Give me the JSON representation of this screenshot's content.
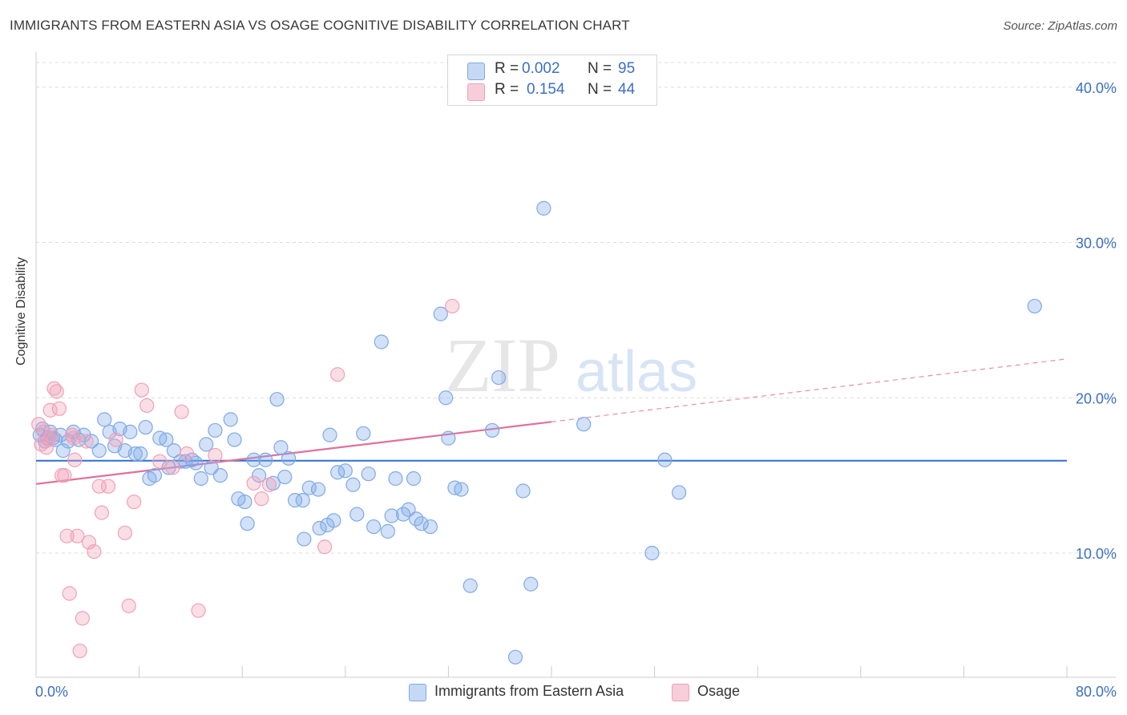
{
  "title": "IMMIGRANTS FROM EASTERN ASIA VS OSAGE COGNITIVE DISABILITY CORRELATION CHART",
  "source": "Source: ZipAtlas.com",
  "watermark": {
    "zip": "ZIP",
    "atlas": "atlas"
  },
  "stats_legend": [
    {
      "r_label": "R =",
      "r_value": "0.002",
      "n_label": "N =",
      "n_value": "95",
      "color": "#7ea9e8"
    },
    {
      "r_label": "R =",
      "r_value": "0.154",
      "n_label": "N =",
      "n_value": "44",
      "color": "#f0a0b8"
    }
  ],
  "bottom_legend": [
    {
      "label": "Immigrants from Eastern Asia",
      "color": "#7ea9e8"
    },
    {
      "label": "Osage",
      "color": "#f0a0b8"
    }
  ],
  "chart_data": {
    "type": "scatter",
    "title": "IMMIGRANTS FROM EASTERN ASIA VS OSAGE COGNITIVE DISABILITY CORRELATION CHART",
    "xlabel": "",
    "ylabel": "Cognitive Disability",
    "xlim": [
      0,
      80
    ],
    "ylim": [
      2,
      42
    ],
    "x_tick_labels": [
      "0.0%",
      "80.0%"
    ],
    "y_ticks": [
      10,
      20,
      30,
      40
    ],
    "y_tick_labels": [
      "10.0%",
      "20.0%",
      "30.0%",
      "40.0%"
    ],
    "grid": true,
    "legend_placement": "bottom",
    "series": [
      {
        "name": "Immigrants from Eastern Asia",
        "color": "#7ea9e8",
        "trend": {
          "x_start": 0,
          "y_start": 15.95,
          "x_end": 80,
          "y_end": 15.95,
          "color": "#2f6fd0"
        },
        "points": [
          [
            0.3,
            17.6
          ],
          [
            0.5,
            18.0
          ],
          [
            0.7,
            17.2
          ],
          [
            0.9,
            17.4
          ],
          [
            1.1,
            17.8
          ],
          [
            1.3,
            17.4
          ],
          [
            1.5,
            17.3
          ],
          [
            1.9,
            17.6
          ],
          [
            2.1,
            16.6
          ],
          [
            2.5,
            17.2
          ],
          [
            2.9,
            17.8
          ],
          [
            3.3,
            17.3
          ],
          [
            3.7,
            17.6
          ],
          [
            4.3,
            17.2
          ],
          [
            4.9,
            16.6
          ],
          [
            5.3,
            18.6
          ],
          [
            5.7,
            17.8
          ],
          [
            6.1,
            16.9
          ],
          [
            6.5,
            18.0
          ],
          [
            6.9,
            16.6
          ],
          [
            7.3,
            17.8
          ],
          [
            7.7,
            16.4
          ],
          [
            8.1,
            16.4
          ],
          [
            8.5,
            18.1
          ],
          [
            8.8,
            14.8
          ],
          [
            9.2,
            15.0
          ],
          [
            9.6,
            17.4
          ],
          [
            10.1,
            17.3
          ],
          [
            10.3,
            15.5
          ],
          [
            10.7,
            16.6
          ],
          [
            11.2,
            15.9
          ],
          [
            11.6,
            15.9
          ],
          [
            12.1,
            16.0
          ],
          [
            12.4,
            15.8
          ],
          [
            12.8,
            14.8
          ],
          [
            13.2,
            17.0
          ],
          [
            13.6,
            15.5
          ],
          [
            13.9,
            17.9
          ],
          [
            14.3,
            15.0
          ],
          [
            15.1,
            18.6
          ],
          [
            15.4,
            17.3
          ],
          [
            15.7,
            13.5
          ],
          [
            16.2,
            13.3
          ],
          [
            16.4,
            11.9
          ],
          [
            16.9,
            16.0
          ],
          [
            17.3,
            15.0
          ],
          [
            17.8,
            16.0
          ],
          [
            18.4,
            14.5
          ],
          [
            18.7,
            19.9
          ],
          [
            19.0,
            16.8
          ],
          [
            19.3,
            14.9
          ],
          [
            19.6,
            16.1
          ],
          [
            20.1,
            13.4
          ],
          [
            20.7,
            13.4
          ],
          [
            20.8,
            10.9
          ],
          [
            21.2,
            14.2
          ],
          [
            21.9,
            14.1
          ],
          [
            22.0,
            11.6
          ],
          [
            22.6,
            11.8
          ],
          [
            22.8,
            17.6
          ],
          [
            23.1,
            12.1
          ],
          [
            23.4,
            15.2
          ],
          [
            24.0,
            15.3
          ],
          [
            24.6,
            14.4
          ],
          [
            24.9,
            12.5
          ],
          [
            25.4,
            17.7
          ],
          [
            25.8,
            15.1
          ],
          [
            26.2,
            11.7
          ],
          [
            26.8,
            23.6
          ],
          [
            27.3,
            11.4
          ],
          [
            27.6,
            12.4
          ],
          [
            27.9,
            14.8
          ],
          [
            28.5,
            12.5
          ],
          [
            28.9,
            12.8
          ],
          [
            29.3,
            14.8
          ],
          [
            29.5,
            12.2
          ],
          [
            29.9,
            11.9
          ],
          [
            30.6,
            11.7
          ],
          [
            31.4,
            25.4
          ],
          [
            31.8,
            20.0
          ],
          [
            32.0,
            17.4
          ],
          [
            32.5,
            14.2
          ],
          [
            33.0,
            14.1
          ],
          [
            33.7,
            7.9
          ],
          [
            35.4,
            17.9
          ],
          [
            35.9,
            21.3
          ],
          [
            37.2,
            3.3
          ],
          [
            37.8,
            14.0
          ],
          [
            38.4,
            8.0
          ],
          [
            39.4,
            32.2
          ],
          [
            42.5,
            18.3
          ],
          [
            47.8,
            10.0
          ],
          [
            48.8,
            16.0
          ],
          [
            49.9,
            13.9
          ],
          [
            77.5,
            25.9
          ]
        ]
      },
      {
        "name": "Osage",
        "color": "#f0a0b8",
        "trend": {
          "x_start": 0,
          "y_start": 14.45,
          "x_end": 40,
          "y_end": 18.45,
          "dash_x_end": 80,
          "dash_y_end": 22.5,
          "color": "#e0709a"
        },
        "points": [
          [
            0.2,
            18.3
          ],
          [
            0.4,
            17.0
          ],
          [
            0.6,
            17.8
          ],
          [
            0.8,
            16.8
          ],
          [
            1.0,
            17.3
          ],
          [
            1.2,
            17.6
          ],
          [
            1.4,
            20.6
          ],
          [
            1.6,
            20.4
          ],
          [
            1.8,
            19.3
          ],
          [
            2.0,
            15.0
          ],
          [
            2.2,
            15.0
          ],
          [
            2.4,
            11.1
          ],
          [
            2.6,
            7.4
          ],
          [
            2.8,
            17.6
          ],
          [
            3.0,
            16.0
          ],
          [
            3.2,
            11.1
          ],
          [
            3.4,
            3.7
          ],
          [
            3.6,
            5.8
          ],
          [
            3.9,
            17.2
          ],
          [
            4.1,
            10.7
          ],
          [
            4.5,
            10.1
          ],
          [
            4.9,
            14.3
          ],
          [
            5.1,
            12.6
          ],
          [
            5.6,
            14.3
          ],
          [
            6.2,
            17.3
          ],
          [
            6.9,
            11.3
          ],
          [
            7.2,
            6.6
          ],
          [
            7.6,
            13.3
          ],
          [
            8.2,
            20.5
          ],
          [
            8.6,
            19.5
          ],
          [
            9.6,
            15.9
          ],
          [
            10.6,
            15.5
          ],
          [
            11.3,
            19.1
          ],
          [
            11.7,
            16.4
          ],
          [
            12.6,
            6.3
          ],
          [
            13.9,
            16.3
          ],
          [
            16.9,
            14.5
          ],
          [
            17.5,
            13.5
          ],
          [
            18.1,
            14.4
          ],
          [
            22.4,
            10.4
          ],
          [
            23.4,
            21.5
          ],
          [
            32.3,
            25.9
          ],
          [
            1.1,
            19.2
          ],
          [
            2.9,
            17.4
          ]
        ]
      }
    ]
  }
}
